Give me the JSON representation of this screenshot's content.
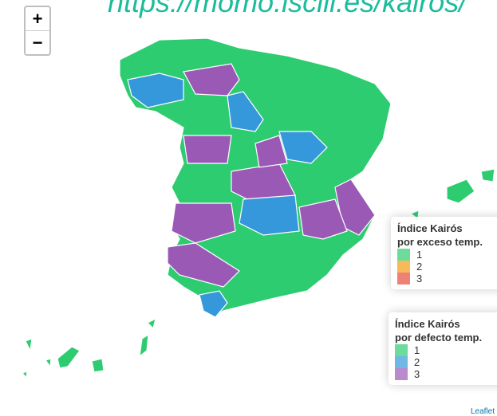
{
  "zoom": {
    "in": "+",
    "out": "−"
  },
  "header": {
    "title": "https://momo.isciii.es/kairos/"
  },
  "legends": [
    {
      "title": [
        "Índice Kairós",
        "por exceso temp."
      ],
      "items": [
        {
          "label": "1",
          "color": "#2ecc71"
        },
        {
          "label": "2",
          "color": "#f39c12"
        },
        {
          "label": "3",
          "color": "#e74c3c"
        }
      ]
    },
    {
      "title": [
        "Índice Kairós",
        "por defecto temp."
      ],
      "items": [
        {
          "label": "1",
          "color": "#2ecc71"
        },
        {
          "label": "2",
          "color": "#3498db"
        },
        {
          "label": "3",
          "color": "#9b59b6"
        }
      ]
    }
  ],
  "attribution": "Leaflet"
}
